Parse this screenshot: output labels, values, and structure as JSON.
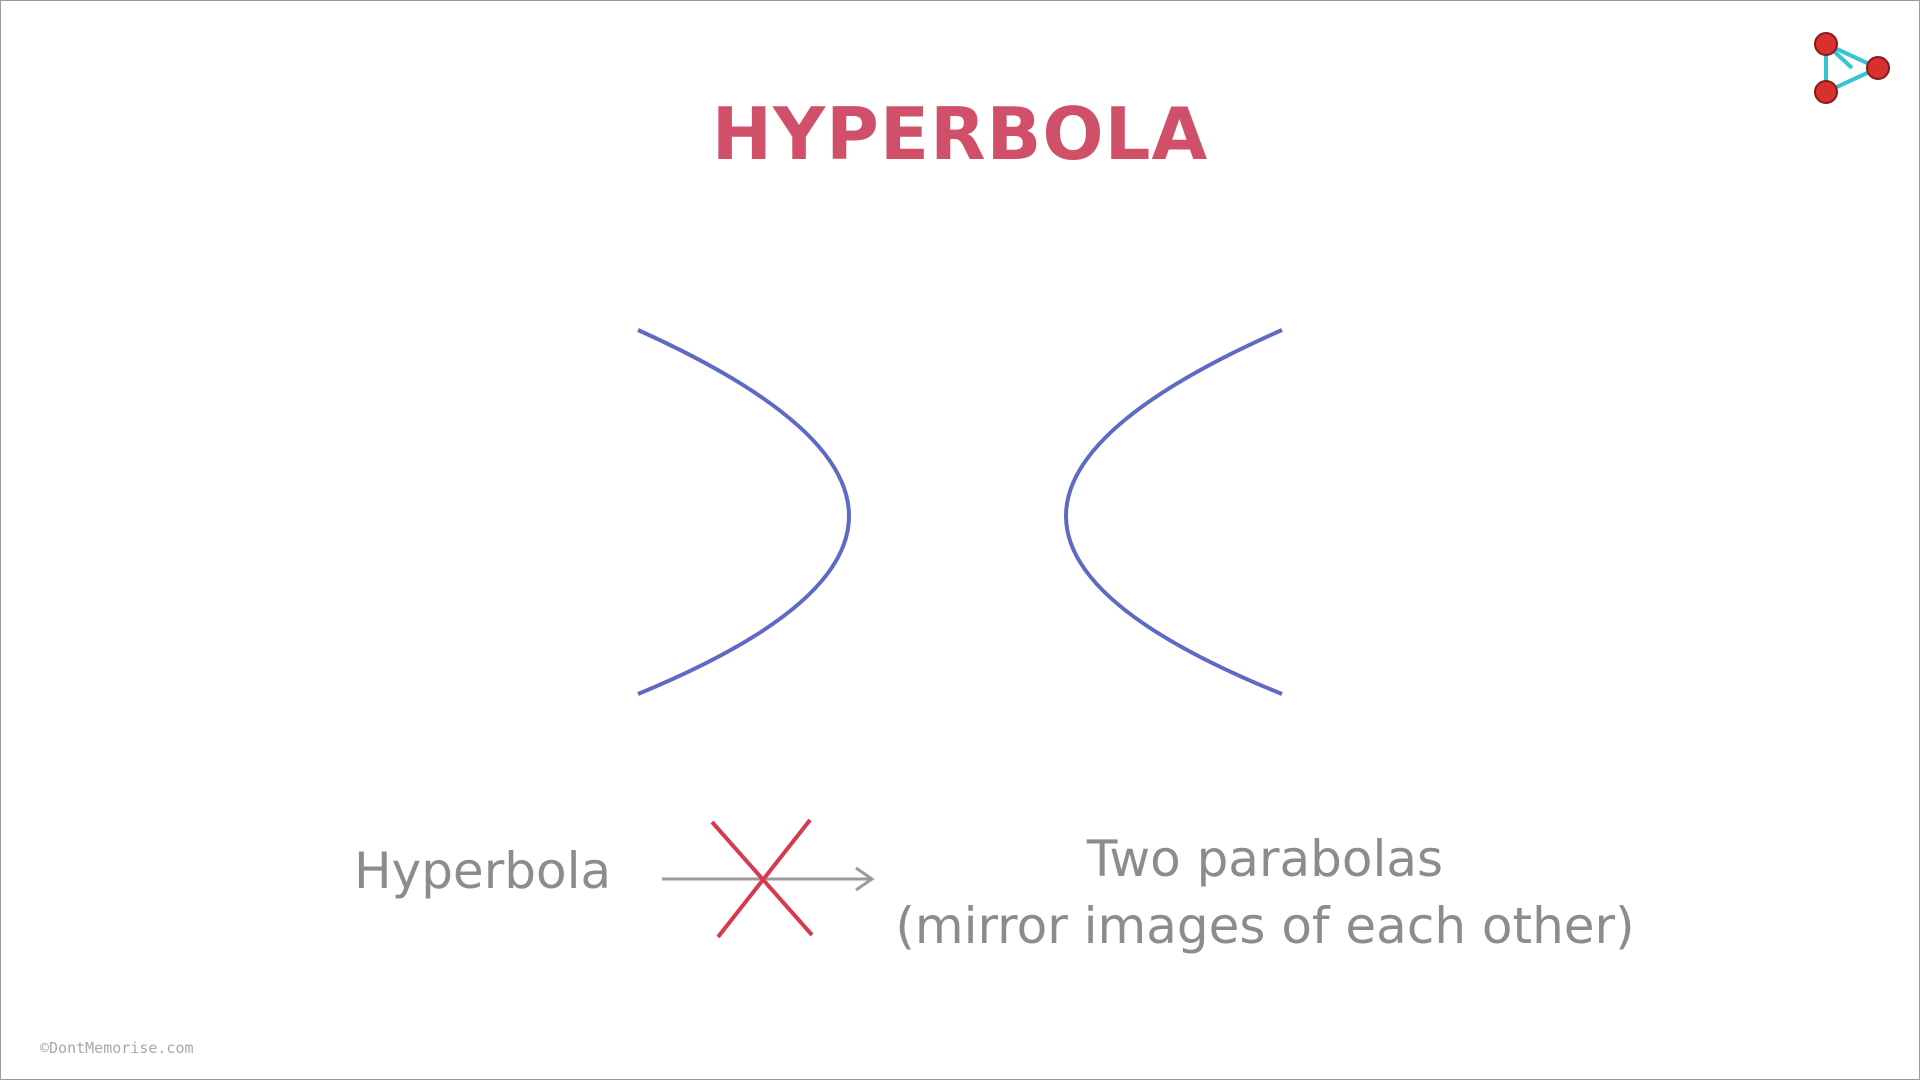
{
  "title": "HYPERBOLA",
  "colors": {
    "title": "#d0506a",
    "curve": "#5e6ac4",
    "text": "#8c8c8c",
    "cross": "#d8394f",
    "arrow": "#9b9b9b",
    "logo_dot": "#d8302f",
    "logo_line": "#36c4d4"
  },
  "diagram": {
    "left_label": "Hyperbola",
    "right_label_line1": "Two parabolas",
    "right_label_line2": "(mirror images of each other)",
    "relation": "not equivalent"
  },
  "icons": {
    "logo": "play-triangle-logo-icon",
    "cross": "cross-mark-icon",
    "arrow": "right-arrow-icon"
  },
  "watermark": "©DontMemorise.com"
}
